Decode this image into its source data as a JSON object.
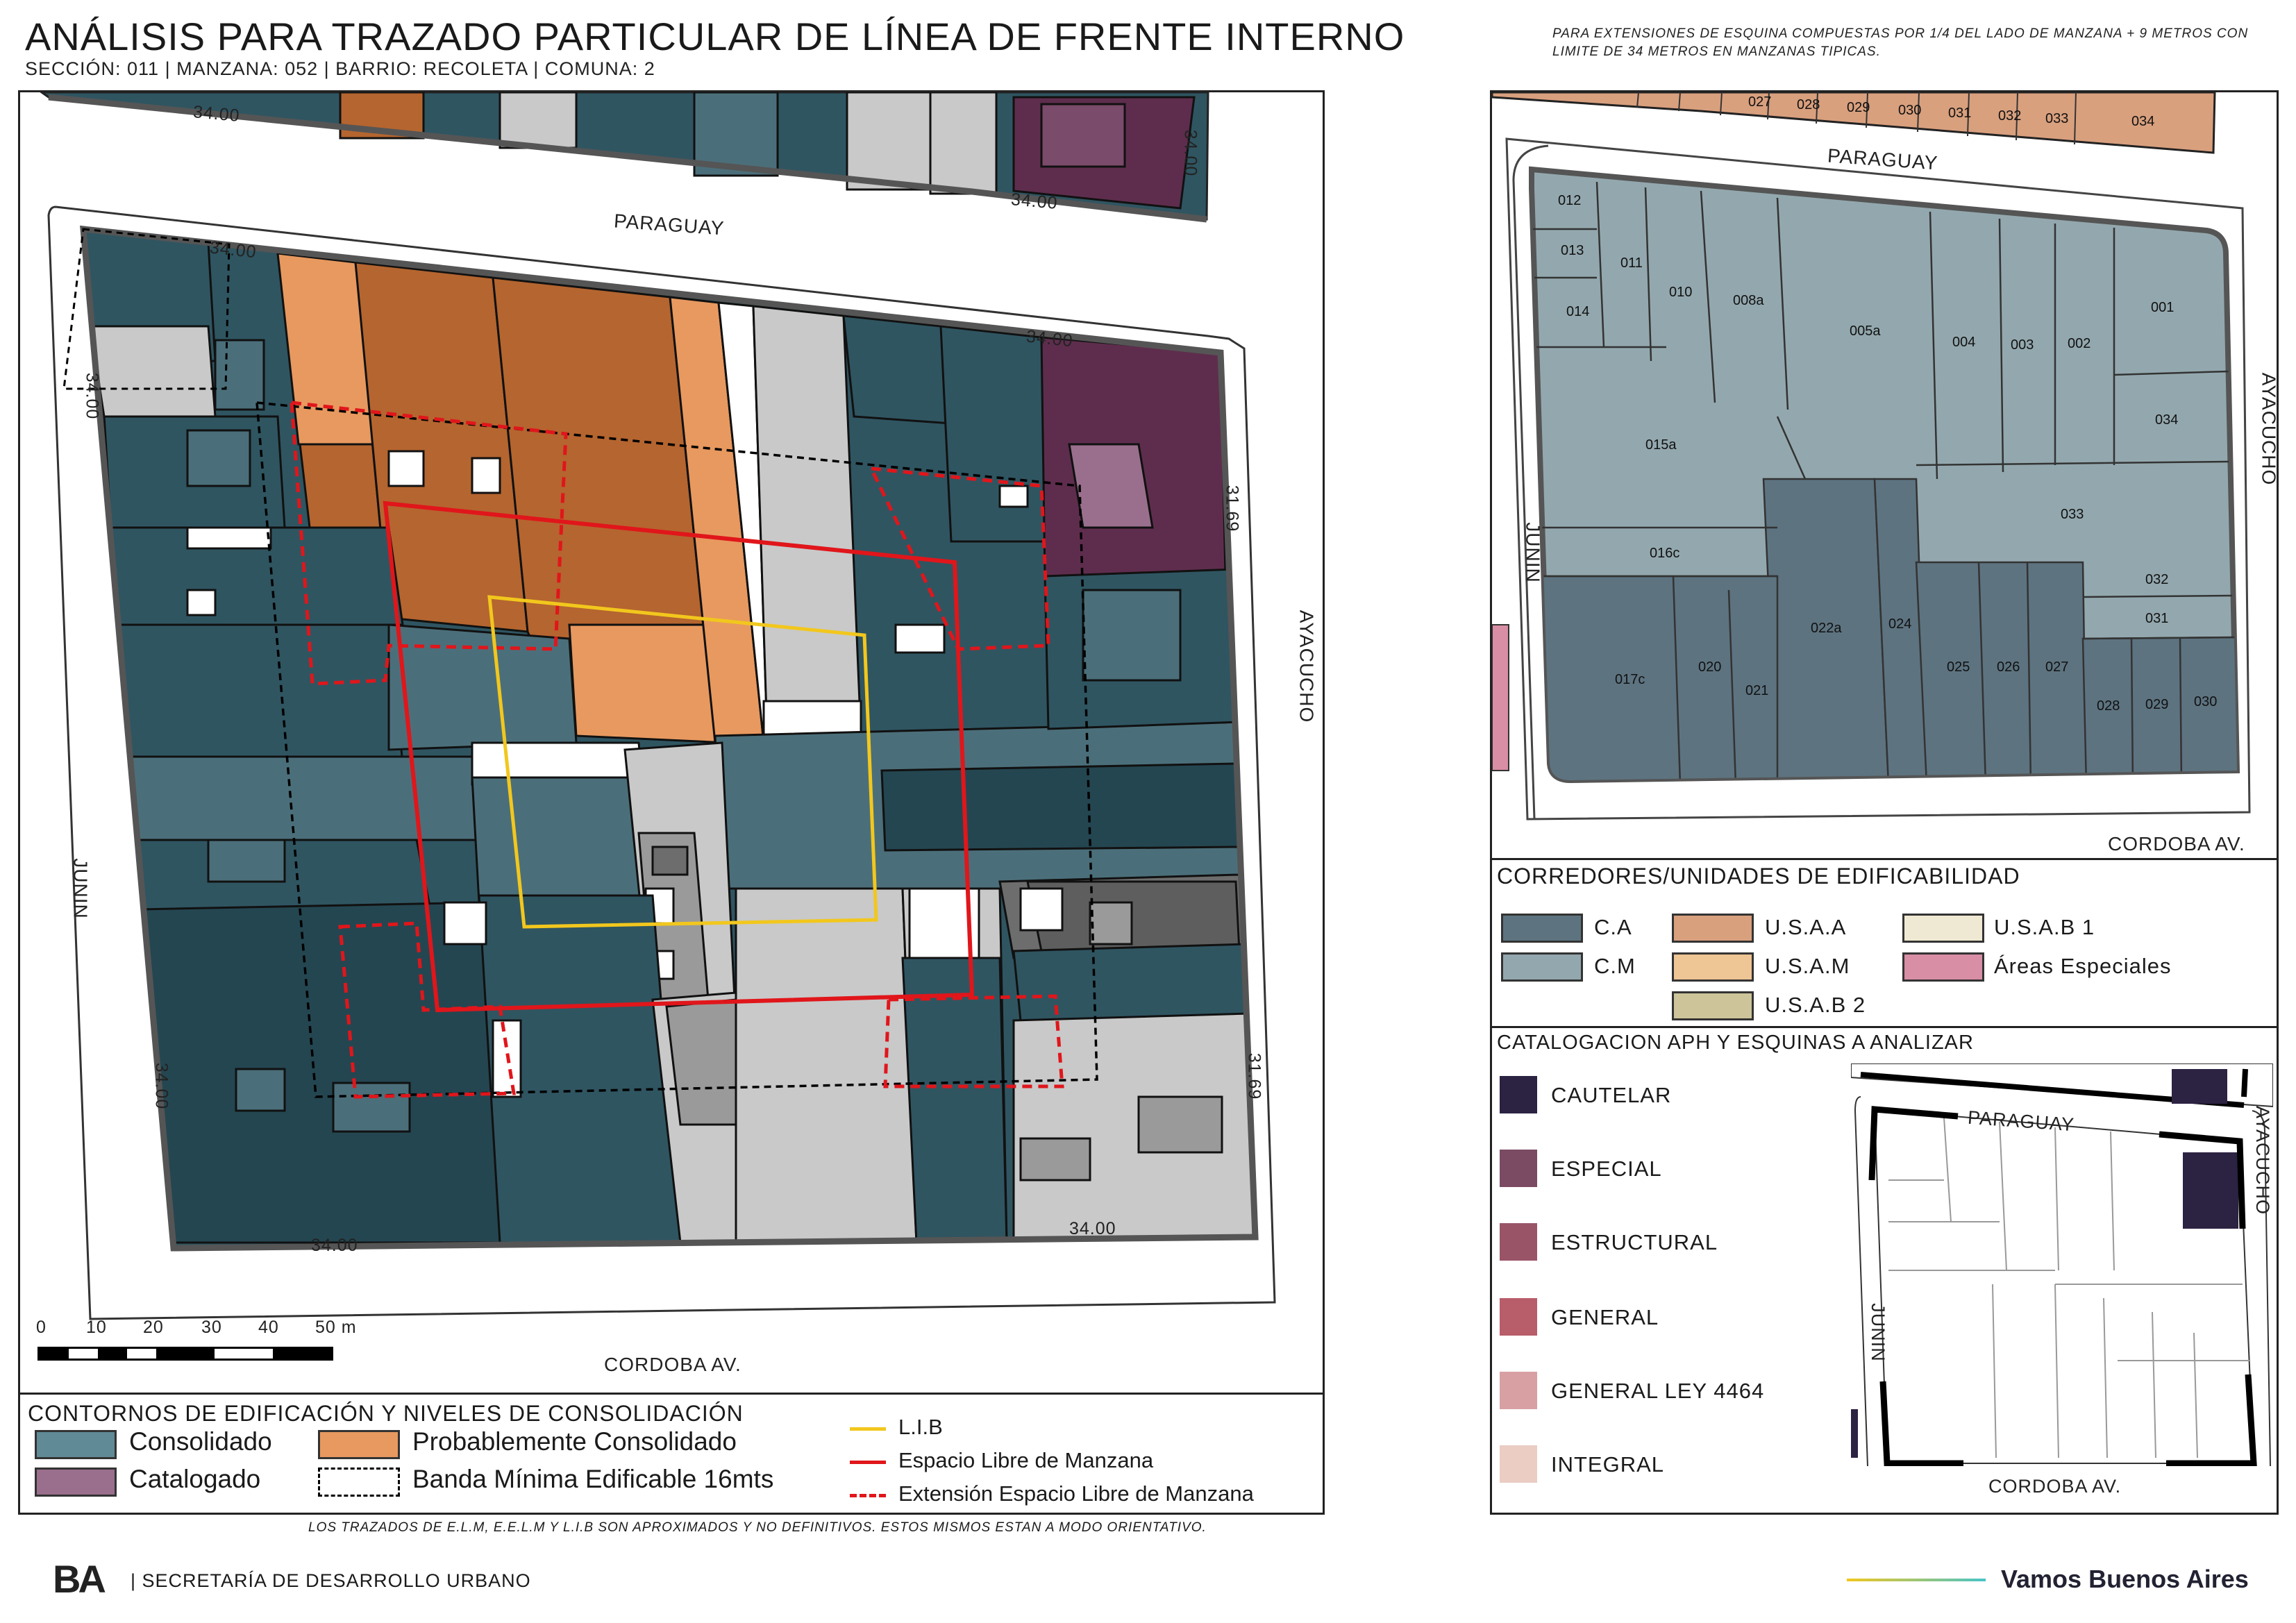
{
  "header": {
    "title": "ANÁLISIS PARA TRAZADO PARTICULAR DE LÍNEA DE FRENTE INTERNO",
    "subtitle": "SECCIÓN: 011 |  MANZANA: 052 | BARRIO: RECOLETA | COMUNA: 2",
    "note": "PARA EXTENSIONES DE ESQUINA COMPUESTAS POR 1/4 DEL LADO DE MANZANA + 9 METROS CON LIMITE DE 34 METROS EN MANZANAS TIPICAS."
  },
  "main_map": {
    "streets": {
      "top": "PARAGUAY",
      "right": "AYACUCHO",
      "left": "JUNIN",
      "bottom": "CORDOBA AV."
    },
    "dimensions": {
      "top_prev_block_left": "34.00",
      "top_prev_block_right": "34.00",
      "top_prev_block_vertical": "34.00",
      "top_left": "34.00",
      "top_right": "34.00",
      "left_top": "34.00",
      "right_top": "31.69",
      "left_bottom": "34.00",
      "right_bottom": "31.69",
      "bottom_left": "34.00",
      "bottom_right": "34.00"
    },
    "scale": {
      "ticks": [
        "0",
        "10",
        "20",
        "30",
        "40",
        "50 m"
      ]
    }
  },
  "legend_main": {
    "title": "CONTORNOS DE EDIFICACIÓN Y NIVELES DE CONSOLIDACIÓN",
    "items": {
      "consolidado": "Consolidado",
      "probablemente": "Probablemente Consolidado",
      "catalogado": "Catalogado",
      "banda": "Banda Mínima Edificable 16mts",
      "lib": "L.I.B",
      "elm": "Espacio Libre de Manzana",
      "eelm": "Extensión Espacio Libre de Manzana"
    },
    "colors": {
      "consolidado": "#5f8a96",
      "probablemente": "#e8995f",
      "catalogado": "#9a6f8d",
      "lib": "#f2c71d",
      "elm": "#e0161b"
    }
  },
  "corredores": {
    "title": "CORREDORES/UNIDADES DE EDIFICABILIDAD",
    "items": {
      "ca": "C.A",
      "cm": "C.M",
      "usaa": "U.S.A.A",
      "usam": "U.S.A.M",
      "usab2": "U.S.A.B 2",
      "usab1": "U.S.A.B 1",
      "areas": "Áreas Especiales"
    },
    "colors": {
      "ca": "#5d7380",
      "cm": "#93a8ae",
      "usaa": "#d9a07e",
      "usam": "#eec594",
      "usab2": "#cdc49a",
      "usab1": "#efe9d3",
      "areas": "#d88ea5"
    }
  },
  "lots_map": {
    "streets": {
      "top": "PARAGUAY",
      "right": "AYACUCHO",
      "left": "JUNIN",
      "bottom": "CORDOBA AV."
    },
    "top_lots": [
      "027",
      "028",
      "029",
      "030",
      "031",
      "032",
      "033",
      "034"
    ],
    "lots": {
      "l012": "012",
      "l013": "013",
      "l014": "014",
      "l011": "011",
      "l010": "010",
      "l008a": "008a",
      "l005a": "005a",
      "l004": "004",
      "l003": "003",
      "l002": "002",
      "l001": "001",
      "l034": "034",
      "l015a": "015a",
      "l033": "033",
      "l016c": "016c",
      "l032": "032",
      "l031": "031",
      "l017c": "017c",
      "l020": "020",
      "l021": "021",
      "l022a": "022a",
      "l024": "024",
      "l025": "025",
      "l026": "026",
      "l027": "027",
      "l028": "028",
      "l029": "029",
      "l030": "030"
    }
  },
  "catalogacion": {
    "title": "CATALOGACION APH Y ESQUINAS A ANALIZAR",
    "items": {
      "cautelar": "CAUTELAR",
      "especial": "ESPECIAL",
      "estructural": "ESTRUCTURAL",
      "general": "GENERAL",
      "general_ley": "GENERAL LEY 4464",
      "integral": "INTEGRAL"
    },
    "colors": {
      "cautelar": "#2c2242",
      "especial": "#7a4b62",
      "estructural": "#9a5468",
      "general": "#b85d6a",
      "general_ley": "#d8a0a3",
      "integral": "#ebcdc4"
    },
    "streets": {
      "top": "PARAGUAY",
      "right": "AYACUCHO",
      "left": "JUNIN",
      "bottom": "CORDOBA AV."
    }
  },
  "footer": {
    "disclaimer": "LOS TRAZADOS DE E.L.M, E.E.L.M Y L.I.B SON APROXIMADOS Y NO DEFINITIVOS. ESTOS MISMOS ESTAN A MODO ORIENTATIVO.",
    "logo": "BA",
    "org": "| SECRETARÍA DE DESARROLLO URBANO",
    "slogan": "Vamos Buenos Aires"
  }
}
